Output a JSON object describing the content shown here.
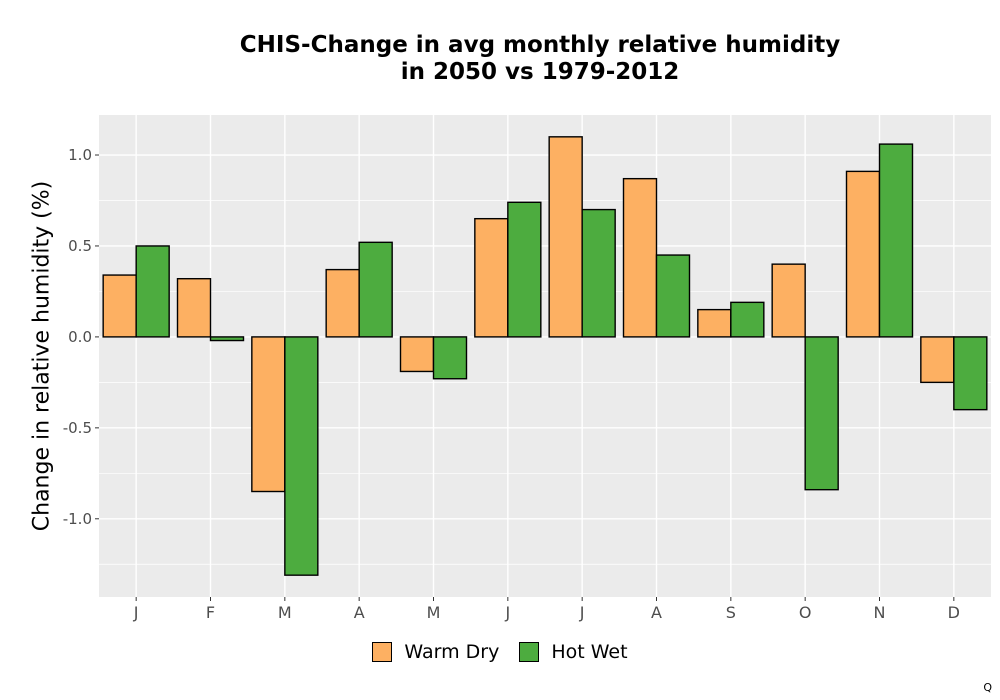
{
  "chart_data": {
    "type": "bar",
    "title_line1": "CHIS-Change in avg monthly relative humidity",
    "title_line2": "in 2050 vs 1979-2012",
    "xlabel": "",
    "ylabel": "Change in relative humidity (%)",
    "categories": [
      "J",
      "F",
      "M",
      "A",
      "M",
      "J",
      "J",
      "A",
      "S",
      "O",
      "N",
      "D"
    ],
    "series": [
      {
        "name": "Warm Dry",
        "color": "#FDB062",
        "values": [
          0.34,
          0.32,
          -0.85,
          0.37,
          -0.19,
          0.65,
          1.1,
          0.87,
          0.15,
          0.4,
          0.91,
          -0.25
        ]
      },
      {
        "name": "Hot Wet",
        "color": "#4DAC3F",
        "values": [
          0.5,
          -0.02,
          -1.31,
          0.52,
          -0.23,
          0.74,
          0.7,
          0.45,
          0.19,
          -0.84,
          1.06,
          -0.4
        ]
      }
    ],
    "y_ticks": [
      -1.0,
      -0.5,
      0.0,
      0.5,
      1.0
    ],
    "y_tick_labels": [
      "-1.0",
      "-0.5",
      "0.0",
      "0.5",
      "1.0"
    ],
    "ylim": [
      -1.43,
      1.22
    ],
    "grid": true,
    "legend_position": "bottom",
    "panel_color": "#EBEBEB"
  },
  "footer": {
    "corner_mark": "Q"
  }
}
